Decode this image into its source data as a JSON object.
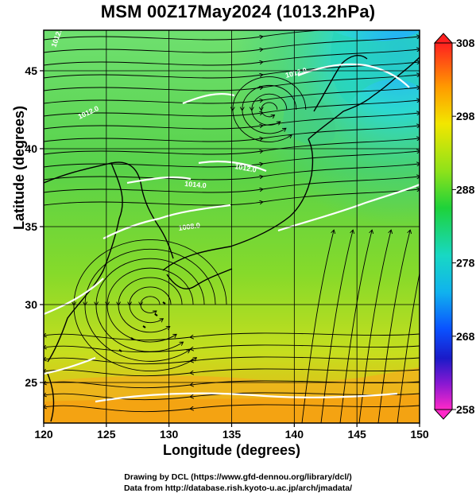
{
  "title": "MSM 00Z17May2024 (1013.2hPa)",
  "xlabel": "Longitude (degrees)",
  "ylabel": "Latitude  (degrees)",
  "x_ticks": [
    "120",
    "125",
    "130",
    "135",
    "140",
    "145",
    "150"
  ],
  "y_ticks": [
    "25",
    "30",
    "35",
    "40",
    "45"
  ],
  "colorbar_ticks": [
    "308",
    "298",
    "288",
    "278",
    "268",
    "258"
  ],
  "credits": {
    "line1": "Drawing by DCL (https://www.gfd-dennou.org/library/dcl/)",
    "line2": "Data from http://database.rish.kyoto-u.ac.jp/arch/jmadata/"
  },
  "contour_labels": [
    "1012.0",
    "1012.0",
    "1012.0",
    "1014.0",
    "1008.0",
    "1012.0"
  ],
  "map": {
    "lon_range": [
      120,
      150
    ],
    "lat_range": [
      22.4,
      47.6
    ],
    "field": "temperature (K) shading with streamlines and isobars",
    "colorbar_range": [
      258,
      308
    ],
    "colors": {
      "warm": "#f0a018",
      "mid": "#7ad61e",
      "green": "#3cc83c",
      "cool": "#22d4c8",
      "cold": "#1e8cff",
      "coast": "#000000",
      "isobar": "#ffffff"
    }
  }
}
